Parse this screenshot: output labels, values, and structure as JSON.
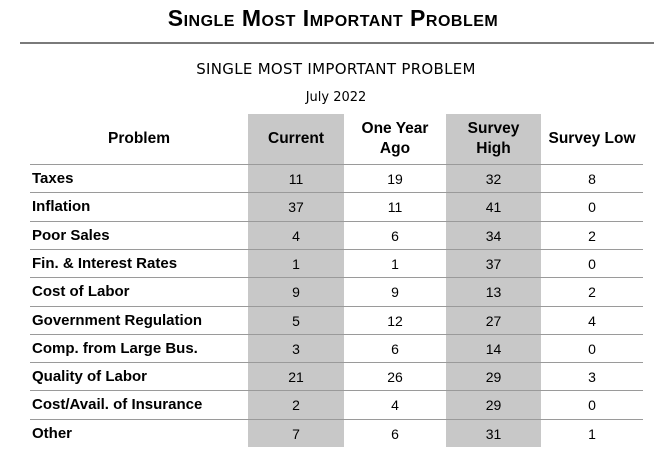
{
  "page": {
    "heading": "Single Most Important Problem",
    "table_title": "SINGLE MOST IMPORTANT PROBLEM",
    "table_subtitle": "July 2022"
  },
  "table": {
    "headers": {
      "problem": "Problem",
      "current": "Current",
      "one_year_ago_line1": "One Year",
      "one_year_ago_line2": "Ago",
      "survey_high_line1": "Survey",
      "survey_high_line2": "High",
      "survey_low": "Survey Low"
    },
    "rows": [
      {
        "problem": "Taxes",
        "current": "11",
        "one_year_ago": "19",
        "survey_high": "32",
        "survey_low": "8"
      },
      {
        "problem": "Inflation",
        "current": "37",
        "one_year_ago": "11",
        "survey_high": "41",
        "survey_low": "0"
      },
      {
        "problem": "Poor Sales",
        "current": "4",
        "one_year_ago": "6",
        "survey_high": "34",
        "survey_low": "2"
      },
      {
        "problem": "Fin. & Interest Rates",
        "current": "1",
        "one_year_ago": "1",
        "survey_high": "37",
        "survey_low": "0"
      },
      {
        "problem": "Cost of Labor",
        "current": "9",
        "one_year_ago": "9",
        "survey_high": "13",
        "survey_low": "2"
      },
      {
        "problem": "Government Regulation",
        "current": "5",
        "one_year_ago": "12",
        "survey_high": "27",
        "survey_low": "4"
      },
      {
        "problem": "Comp. from Large Bus.",
        "current": "3",
        "one_year_ago": "6",
        "survey_high": "14",
        "survey_low": "0"
      },
      {
        "problem": "Quality of Labor",
        "current": "21",
        "one_year_ago": "26",
        "survey_high": "29",
        "survey_low": "3"
      },
      {
        "problem": "Cost/Avail. of Insurance",
        "current": "2",
        "one_year_ago": "4",
        "survey_high": "29",
        "survey_low": "0"
      },
      {
        "problem": "Other",
        "current": "7",
        "one_year_ago": "6",
        "survey_high": "31",
        "survey_low": "1"
      }
    ],
    "shaded_column_color": "#c8c8c8",
    "rule_color": "#9a9a9a"
  }
}
